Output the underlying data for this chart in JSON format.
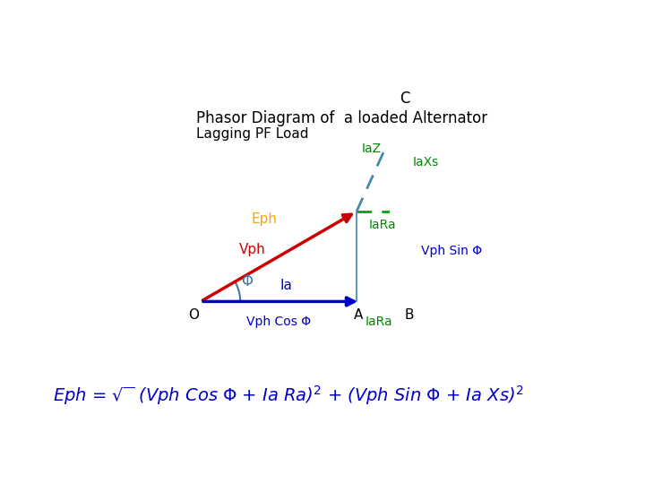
{
  "title": "Phasor Diagram of  a loaded Alternator",
  "subtitle": "Lagging PF Load",
  "background_color": "#ffffff",
  "phi_deg": 30,
  "Vph_mag": 1.0,
  "IaRa_mag": 0.25,
  "IaXs_mag": 0.55,
  "points": {
    "O": [
      0,
      0
    ],
    "A": [
      0.55,
      0
    ],
    "B": [
      0.8,
      0
    ],
    "C_label": "C"
  },
  "colors": {
    "Eph": "#FFA500",
    "Vph": "#CC0000",
    "Ia": "#0000CC",
    "IaZ": "#4488AA",
    "IaRa": "#00AA00",
    "IaXs": "#00AA00",
    "dashed": "#00AA00",
    "axis": "#0000CC",
    "vertical": "#4488AA",
    "text_green": "#008800",
    "text_blue": "#0000CC",
    "text_red": "#CC0000",
    "annotation": "#000000"
  },
  "formula": "Eph = \\u221a (Vph Cos \\u03a6 + Ia Ra)\\u00b2 + (Vph Sin \\u03a6 + Ia Xs)\\u00b2",
  "formula_blue": "#0000CC"
}
